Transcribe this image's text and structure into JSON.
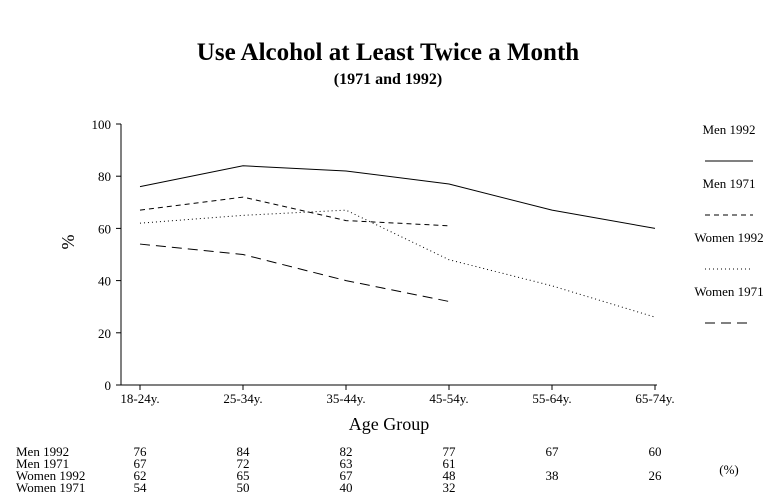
{
  "chart_data": {
    "type": "line",
    "title": "Use Alcohol at Least Twice a Month",
    "subtitle": "(1971 and 1992)",
    "xlabel": "Age Group",
    "ylabel": "%",
    "categories": [
      "18-24y.",
      "25-34y.",
      "35-44y.",
      "45-54y.",
      "55-64y.",
      "65-74y."
    ],
    "ylim": [
      0,
      100
    ],
    "yticks": [
      "0",
      "20",
      "40",
      "60",
      "80",
      "100"
    ],
    "grid": false,
    "legend_position": "right",
    "series": [
      {
        "name": "Men 1992",
        "style": "solid",
        "values": [
          76,
          84,
          82,
          77,
          67,
          60
        ],
        "labels": [
          "76",
          "84",
          "82",
          "77",
          "67",
          "60"
        ]
      },
      {
        "name": "Men 1971",
        "style": "dashed",
        "values": [
          67,
          72,
          63,
          61,
          null,
          null
        ],
        "labels": [
          "67",
          "72",
          "63",
          "61",
          "",
          ""
        ]
      },
      {
        "name": "Women 1992",
        "style": "dotted",
        "values": [
          62,
          65,
          67,
          48,
          38,
          26
        ],
        "labels": [
          "62",
          "65",
          "67",
          "48",
          "38",
          "26"
        ]
      },
      {
        "name": "Women 1971",
        "style": "longdash",
        "values": [
          54,
          50,
          40,
          32,
          null,
          null
        ],
        "labels": [
          "54",
          "50",
          "40",
          "32",
          "",
          ""
        ]
      }
    ],
    "table_unit": "(%)"
  }
}
